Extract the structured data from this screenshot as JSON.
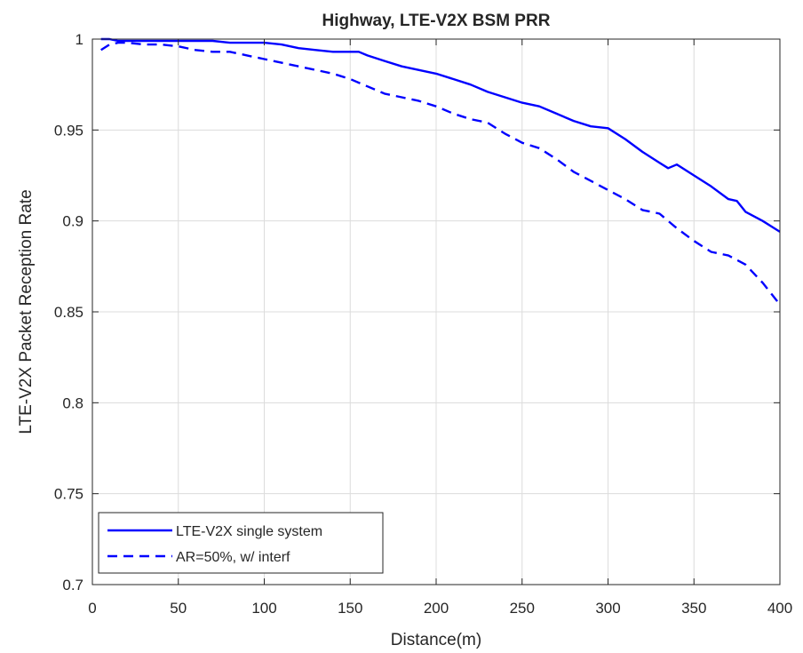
{
  "chart_data": {
    "type": "line",
    "title": "Highway, LTE-V2X BSM PRR",
    "xlabel": "Distance(m)",
    "ylabel": "LTE-V2X Packet Reception Rate",
    "xlim": [
      0,
      400
    ],
    "ylim": [
      0.7,
      1
    ],
    "xticks": [
      "0",
      "50",
      "100",
      "150",
      "200",
      "250",
      "300",
      "350",
      "400"
    ],
    "yticks": [
      "0.7",
      "0.75",
      "0.8",
      "0.85",
      "0.9",
      "0.95",
      "1"
    ],
    "grid": true,
    "legend_position": "bottom-left",
    "series": [
      {
        "name": "LTE-V2X single system",
        "style": "solid",
        "color": "#0000ff",
        "x": [
          5,
          10,
          15,
          20,
          30,
          40,
          50,
          60,
          70,
          80,
          90,
          100,
          110,
          120,
          130,
          140,
          150,
          155,
          160,
          170,
          180,
          190,
          200,
          210,
          220,
          230,
          240,
          250,
          260,
          270,
          280,
          290,
          300,
          310,
          320,
          330,
          335,
          340,
          350,
          360,
          370,
          375,
          380,
          390,
          400
        ],
        "y": [
          1.0,
          1.0,
          0.999,
          0.999,
          0.999,
          0.999,
          0.999,
          0.999,
          0.999,
          0.998,
          0.998,
          0.998,
          0.997,
          0.995,
          0.994,
          0.993,
          0.993,
          0.993,
          0.991,
          0.988,
          0.985,
          0.983,
          0.981,
          0.978,
          0.975,
          0.971,
          0.968,
          0.965,
          0.963,
          0.959,
          0.955,
          0.952,
          0.951,
          0.945,
          0.938,
          0.932,
          0.929,
          0.931,
          0.925,
          0.919,
          0.912,
          0.911,
          0.905,
          0.9,
          0.894
        ]
      },
      {
        "name": "AR=50%, w/ interf",
        "style": "dashed",
        "color": "#0000ff",
        "x": [
          5,
          10,
          15,
          20,
          30,
          40,
          50,
          60,
          70,
          80,
          90,
          100,
          110,
          120,
          130,
          140,
          150,
          160,
          170,
          180,
          190,
          200,
          210,
          220,
          230,
          240,
          250,
          260,
          270,
          280,
          290,
          300,
          310,
          320,
          325,
          330,
          340,
          350,
          360,
          370,
          380,
          390,
          400
        ],
        "y": [
          0.994,
          0.997,
          0.998,
          0.998,
          0.997,
          0.997,
          0.996,
          0.994,
          0.993,
          0.993,
          0.991,
          0.989,
          0.987,
          0.985,
          0.983,
          0.981,
          0.978,
          0.974,
          0.97,
          0.968,
          0.966,
          0.963,
          0.959,
          0.956,
          0.954,
          0.948,
          0.943,
          0.94,
          0.934,
          0.927,
          0.922,
          0.917,
          0.912,
          0.906,
          0.905,
          0.904,
          0.896,
          0.889,
          0.883,
          0.881,
          0.876,
          0.866,
          0.854
        ]
      }
    ]
  }
}
